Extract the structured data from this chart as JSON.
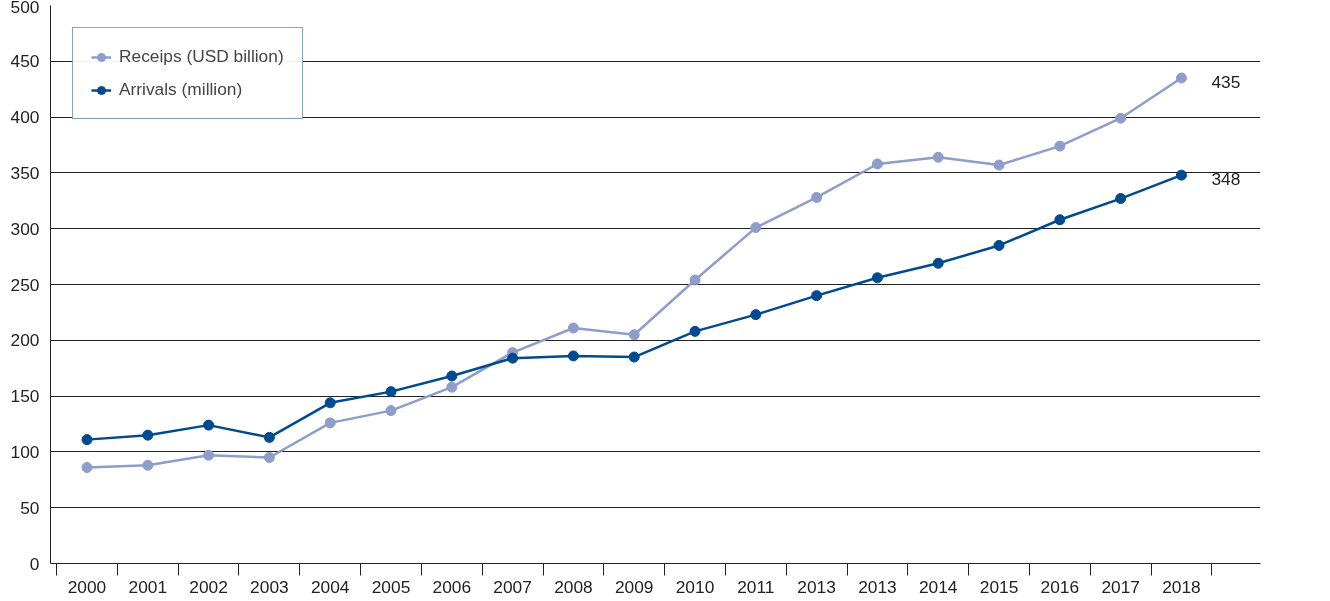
{
  "chart_data": {
    "type": "line",
    "categories": [
      "2000",
      "2001",
      "2002",
      "2003",
      "2004",
      "2005",
      "2006",
      "2007",
      "2008",
      "2009",
      "2010",
      "2011",
      "2013",
      "2013",
      "2014",
      "2015",
      "2016",
      "2017",
      "2018"
    ],
    "series": [
      {
        "name": "Receips (USD billion)",
        "color": "#8e9dc9",
        "values": [
          86,
          88,
          97,
          95,
          126,
          137,
          158,
          189,
          211,
          205,
          254,
          301,
          328,
          358,
          364,
          357,
          374,
          399,
          435
        ],
        "value_labels": [
          null,
          null,
          null,
          null,
          null,
          null,
          null,
          null,
          null,
          null,
          null,
          null,
          null,
          null,
          null,
          null,
          null,
          null,
          "435"
        ]
      },
      {
        "name": "Arrivals (million)",
        "color": "#004a8f",
        "values": [
          111,
          115,
          124,
          113,
          144,
          154,
          168,
          184,
          186,
          185,
          208,
          223,
          240,
          256,
          269,
          285,
          308,
          327,
          348
        ],
        "value_labels": [
          null,
          null,
          null,
          null,
          null,
          null,
          null,
          null,
          null,
          null,
          null,
          null,
          null,
          null,
          null,
          null,
          null,
          null,
          "348"
        ]
      }
    ],
    "ylim": [
      0,
      500
    ],
    "yticks": [
      0,
      50,
      100,
      150,
      200,
      250,
      300,
      350,
      400,
      450,
      500
    ],
    "grid": "y",
    "legend": "top left",
    "marker": "circle",
    "line_style": "solid"
  }
}
